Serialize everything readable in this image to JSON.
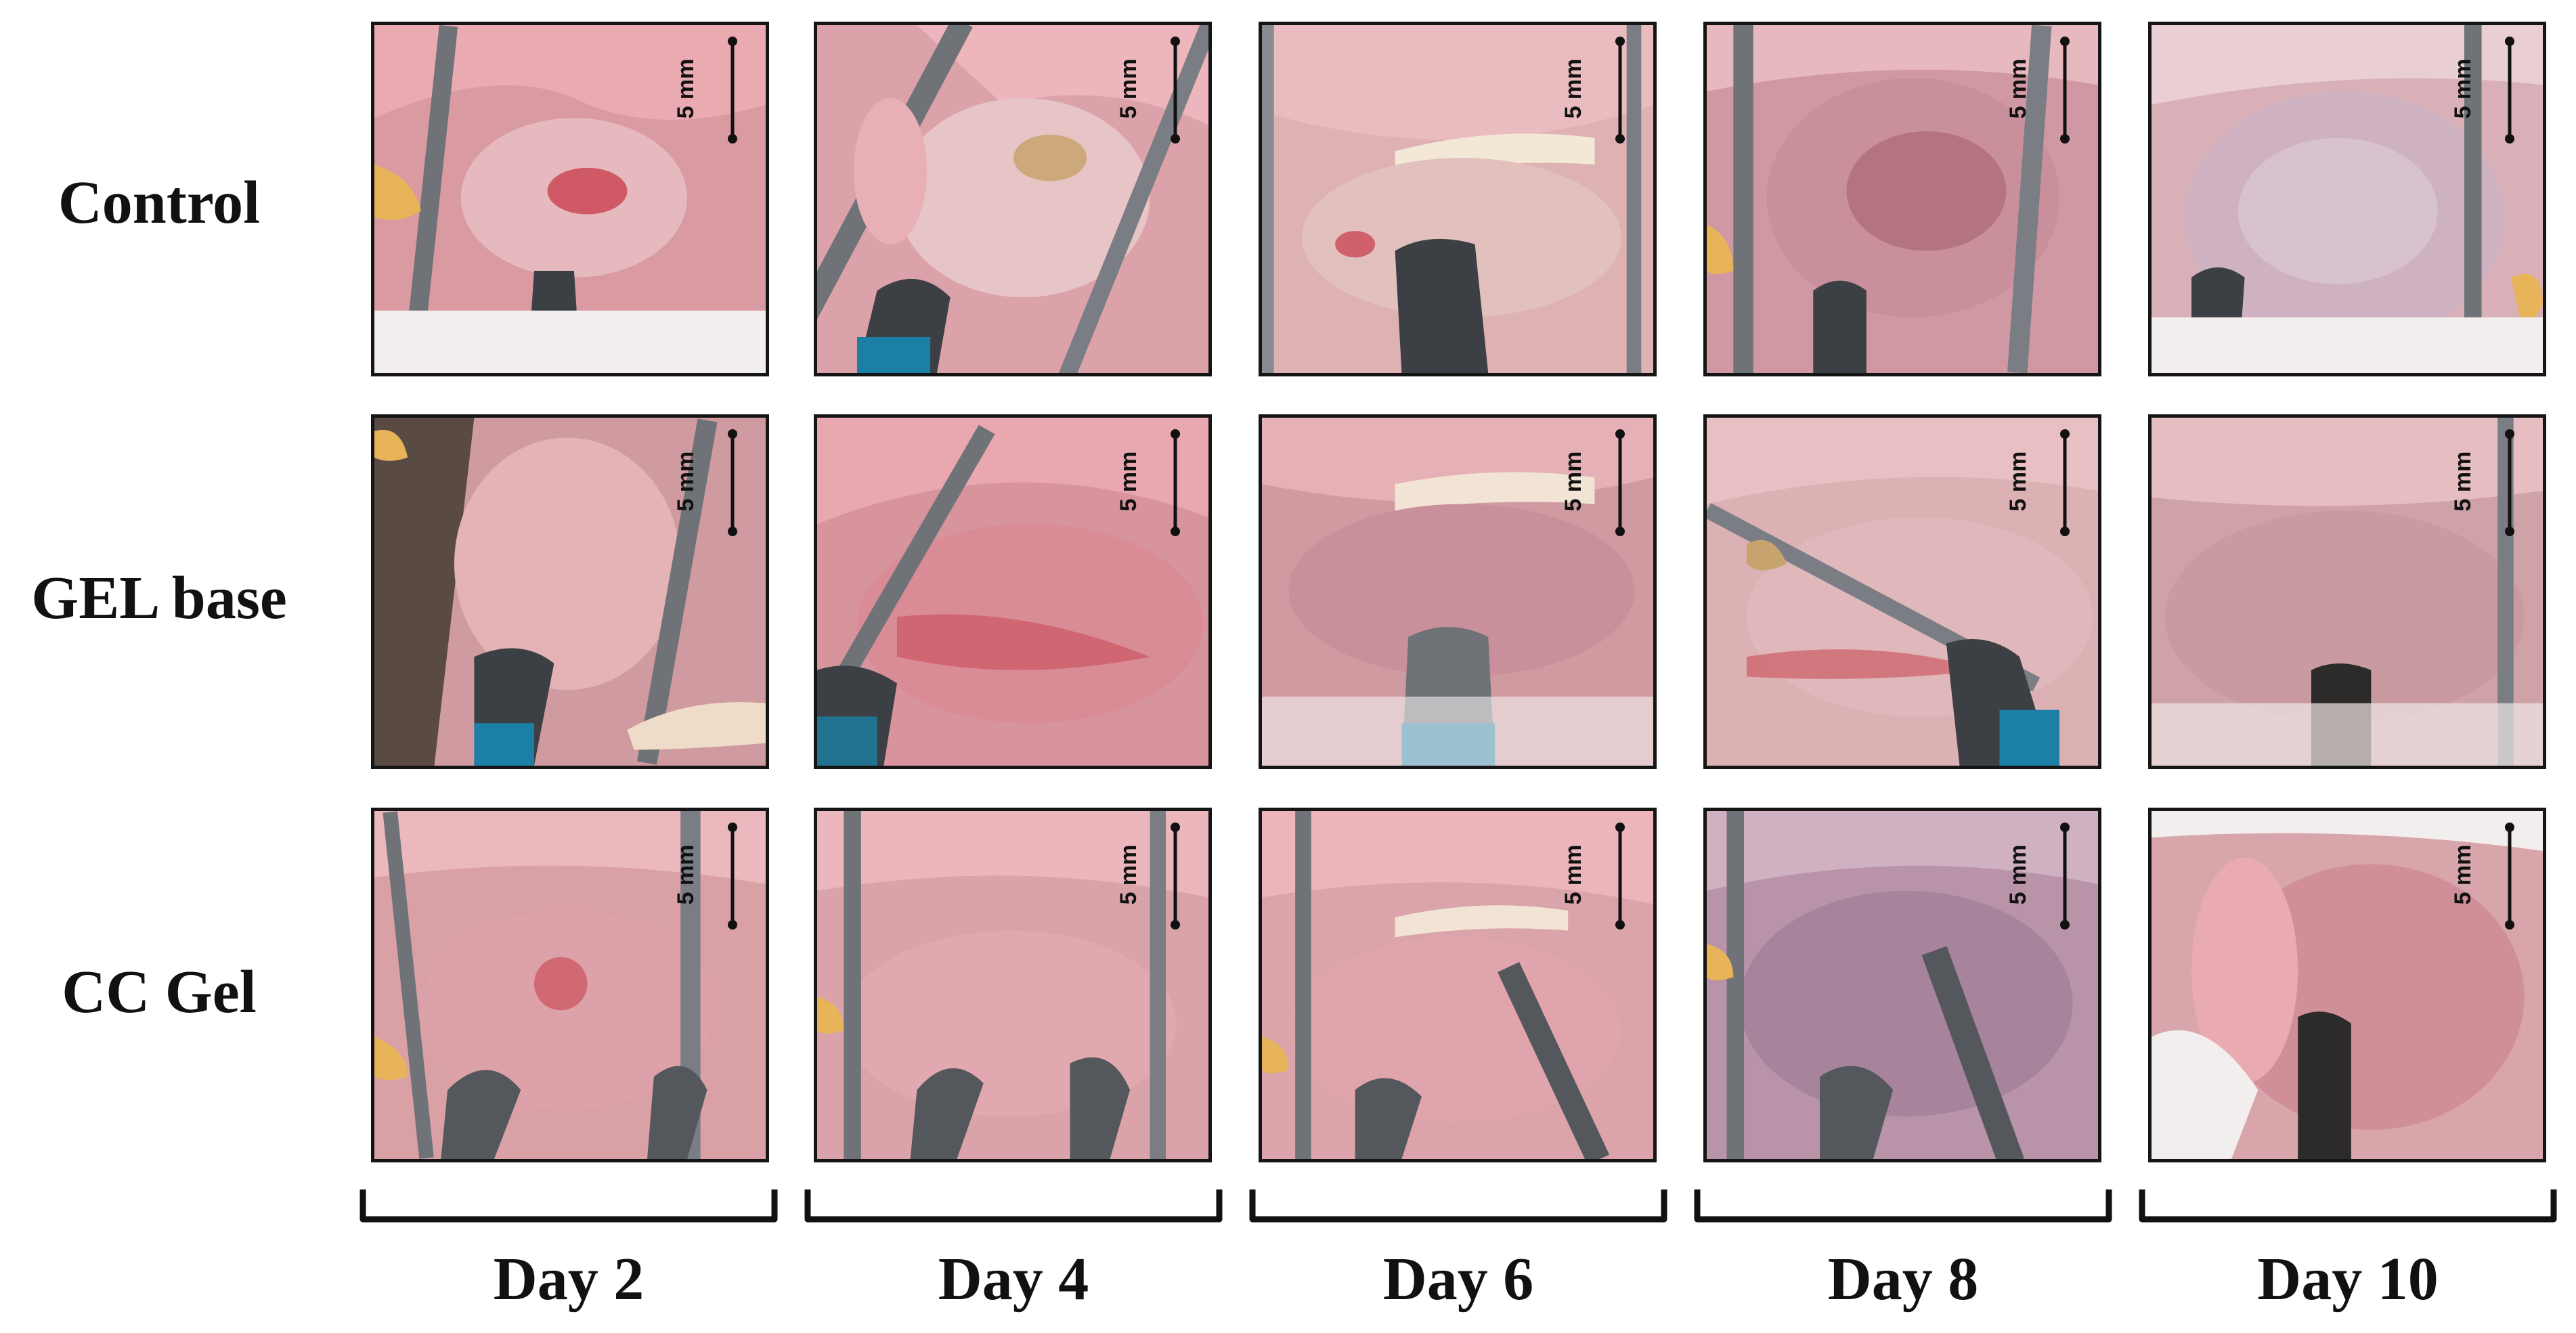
{
  "figure": {
    "rows": [
      {
        "label": "Control"
      },
      {
        "label": "GEL base"
      },
      {
        "label": "CC Gel"
      }
    ],
    "columns": [
      {
        "label": "Day 2"
      },
      {
        "label": "Day 4"
      },
      {
        "label": "Day 6"
      },
      {
        "label": "Day 8"
      },
      {
        "label": "Day 10"
      }
    ],
    "scale_bar_label": "5 mm"
  },
  "palette": {
    "mucosa": "#d99aa2",
    "mucosa_dark": "#b56f79",
    "lesion": "#c9424f",
    "tongue_pink": "#e9aab2",
    "fur": "#f2eeee",
    "instrument": "#6f7378",
    "instrument_dark": "#3c3f44",
    "blue_tip": "#1c7fa6",
    "tooth": "#e7b45a"
  }
}
